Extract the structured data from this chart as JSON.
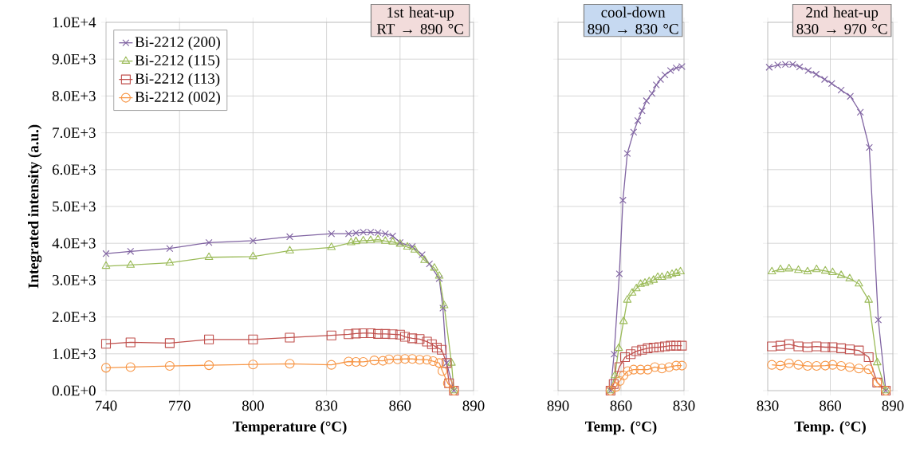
{
  "chart_data": [
    {
      "type": "line",
      "xlabel": "Temperature (°C)",
      "ylabel": "Integrated intensity (a.u.)",
      "annotations": [
        "1st heat-up RT → 890 °C"
      ],
      "xlim": [
        740,
        890
      ],
      "xticks": [
        740,
        770,
        800,
        830,
        860,
        890
      ],
      "ylim": [
        0,
        10000
      ],
      "yticks": [
        {
          "value": 0,
          "label": "0.0E+0"
        },
        {
          "value": 1000,
          "label": "1.0E+3"
        },
        {
          "value": 2000,
          "label": "2.0E+3"
        },
        {
          "value": 3000,
          "label": "3.0E+3"
        },
        {
          "value": 4000,
          "label": "4.0E+3"
        },
        {
          "value": 5000,
          "label": "5.0E+3"
        },
        {
          "value": 6000,
          "label": "6.0E+3"
        },
        {
          "value": 7000,
          "label": "7.0E+3"
        },
        {
          "value": 8000,
          "label": "8.0E+3"
        },
        {
          "value": 9000,
          "label": "9.0E+3"
        },
        {
          "value": 10000,
          "label": "1.0E+4"
        }
      ],
      "grid": true,
      "legend": "top left",
      "line_style": "solid",
      "series": [
        {
          "name": "Bi-2212 (200)",
          "color": "#8064a2",
          "marker": "cross",
          "x": [
            740,
            750,
            766,
            782,
            800,
            815,
            832,
            839,
            842,
            845,
            848,
            851,
            854,
            857,
            860,
            865,
            869,
            872,
            876,
            877.5,
            879,
            882
          ],
          "values": [
            3720,
            3780,
            3860,
            4020,
            4070,
            4180,
            4260,
            4260,
            4280,
            4300,
            4300,
            4290,
            4260,
            4200,
            4020,
            3910,
            3690,
            3440,
            3040,
            2240,
            750,
            0
          ]
        },
        {
          "name": "Bi-2212 (115)",
          "color": "#9bbb59",
          "marker": "triangle",
          "x": [
            740,
            750,
            766,
            782,
            800,
            815,
            832,
            840,
            842,
            845,
            848,
            851,
            854,
            857,
            860,
            863,
            866,
            870,
            874,
            876,
            878,
            881,
            882
          ],
          "values": [
            3380,
            3410,
            3470,
            3620,
            3640,
            3800,
            3890,
            4020,
            4050,
            4070,
            4080,
            4100,
            4060,
            4040,
            3980,
            3900,
            3820,
            3540,
            3330,
            3110,
            2310,
            750,
            0
          ]
        },
        {
          "name": "Bi-2212 (113)",
          "color": "#c0504d",
          "marker": "square",
          "x": [
            740,
            750,
            766,
            782,
            800,
            815,
            832,
            839,
            842,
            845,
            848,
            851,
            854,
            857,
            860,
            862,
            865,
            868,
            871,
            873,
            875,
            877,
            879,
            880,
            882
          ],
          "values": [
            1270,
            1310,
            1290,
            1390,
            1390,
            1440,
            1500,
            1530,
            1550,
            1560,
            1560,
            1540,
            1540,
            1530,
            1520,
            1460,
            1420,
            1400,
            1330,
            1260,
            1170,
            1110,
            750,
            200,
            0
          ]
        },
        {
          "name": "Bi-2212 (002)",
          "color": "#f79646",
          "marker": "circle",
          "x": [
            740,
            750,
            766,
            782,
            800,
            815,
            832,
            839,
            842,
            845,
            849.5,
            853,
            855.5,
            859,
            862,
            865,
            868,
            871,
            873.5,
            876,
            877.3,
            879.5,
            882
          ],
          "values": [
            620,
            640,
            670,
            690,
            710,
            730,
            700,
            790,
            780,
            780,
            820,
            810,
            850,
            850,
            860,
            860,
            840,
            840,
            800,
            750,
            530,
            200,
            0
          ]
        }
      ]
    },
    {
      "type": "line",
      "xlabel": "Temp. (°C)",
      "annotations": [
        "cool-down 890 → 830 °C"
      ],
      "xlim": [
        890,
        830
      ],
      "xticks": [
        890,
        860,
        830
      ],
      "ylim": [
        0,
        10000
      ],
      "yticks": [
        {
          "value": 0,
          "label": null
        },
        {
          "value": 1000,
          "label": null
        },
        {
          "value": 2000,
          "label": null
        },
        {
          "value": 3000,
          "label": null
        },
        {
          "value": 4000,
          "label": null
        },
        {
          "value": 5000,
          "label": null
        },
        {
          "value": 6000,
          "label": null
        },
        {
          "value": 7000,
          "label": null
        },
        {
          "value": 8000,
          "label": null
        },
        {
          "value": 9000,
          "label": null
        },
        {
          "value": 10000,
          "label": null
        }
      ],
      "tick_labels": "x",
      "grid": true,
      "line_style": "solid",
      "series": [
        {
          "color": "#8064a2",
          "marker": "cross",
          "x": [
            865,
            863.3,
            860.8,
            859.1,
            857,
            854,
            852,
            850,
            847.9,
            845.2,
            843.2,
            841.2,
            839.1,
            836.4,
            833.7,
            831
          ],
          "values": [
            0,
            990,
            3170,
            5170,
            6440,
            7020,
            7330,
            7600,
            7870,
            8070,
            8300,
            8450,
            8570,
            8690,
            8760,
            8800
          ]
        },
        {
          "color": "#9bbb59",
          "marker": "triangle",
          "x": [
            865,
            862.9,
            861.1,
            858.8,
            857,
            854.7,
            852.7,
            850.7,
            848.6,
            846.6,
            844.5,
            842.5,
            840.5,
            837.8,
            835.7,
            833.7,
            831.7
          ],
          "values": [
            0,
            410,
            1150,
            1880,
            2460,
            2650,
            2770,
            2890,
            2920,
            2960,
            3000,
            3080,
            3080,
            3120,
            3160,
            3190,
            3230
          ]
        },
        {
          "color": "#c0504d",
          "marker": "square",
          "x": [
            865,
            863.5,
            860.8,
            858.1,
            855.4,
            852.7,
            850,
            847.3,
            844.5,
            841.8,
            839.1,
            836.4,
            833.7,
            831
          ],
          "values": [
            0,
            180,
            640,
            910,
            990,
            1070,
            1110,
            1150,
            1170,
            1180,
            1200,
            1220,
            1220,
            1220
          ]
        },
        {
          "color": "#f79646",
          "marker": "circle",
          "x": [
            865,
            862.5,
            860.6,
            858.8,
            856.8,
            854,
            850.7,
            847.3,
            843.9,
            840.5,
            837.1,
            833.7,
            831
          ],
          "values": [
            0,
            100,
            260,
            410,
            530,
            570,
            570,
            570,
            640,
            600,
            640,
            680,
            680
          ]
        }
      ]
    },
    {
      "type": "line",
      "xlabel": "Temp. (°C)",
      "annotations": [
        "2nd heat-up 830 → 970 °C"
      ],
      "xlim": [
        830,
        890
      ],
      "xticks": [
        830,
        860,
        890
      ],
      "ylim": [
        0,
        10000
      ],
      "yticks": [
        {
          "value": 0,
          "label": null
        },
        {
          "value": 1000,
          "label": null
        },
        {
          "value": 2000,
          "label": null
        },
        {
          "value": 3000,
          "label": null
        },
        {
          "value": 4000,
          "label": null
        },
        {
          "value": 5000,
          "label": null
        },
        {
          "value": 6000,
          "label": null
        },
        {
          "value": 7000,
          "label": null
        },
        {
          "value": 8000,
          "label": null
        },
        {
          "value": 9000,
          "label": null
        },
        {
          "value": 10000,
          "label": null
        }
      ],
      "tick_labels": "x",
      "grid": true,
      "line_style": "solid",
      "series": [
        {
          "color": "#8064a2",
          "marker": "cross",
          "x": [
            830.7,
            834.8,
            838.5,
            842,
            845.3,
            849.4,
            853.2,
            857.3,
            860.7,
            865.2,
            869.6,
            874.4,
            878.7,
            883,
            886.6
          ],
          "values": [
            8780,
            8840,
            8860,
            8860,
            8790,
            8690,
            8590,
            8450,
            8340,
            8160,
            7990,
            7560,
            6600,
            1920,
            0
          ]
        },
        {
          "color": "#9bbb59",
          "marker": "triangle",
          "x": [
            832,
            836.1,
            840.2,
            844.7,
            849.1,
            853.4,
            857.6,
            861.1,
            865.2,
            869.3,
            873.7,
            878.4,
            882.5,
            886.6
          ],
          "values": [
            3230,
            3290,
            3310,
            3270,
            3230,
            3290,
            3250,
            3210,
            3130,
            3040,
            2900,
            2460,
            760,
            0
          ]
        },
        {
          "color": "#c0504d",
          "marker": "square",
          "x": [
            832,
            836.1,
            840.2,
            844.7,
            849.1,
            853.4,
            857.6,
            861.1,
            865.2,
            869.3,
            873.7,
            878.4,
            882.5,
            886.6
          ],
          "values": [
            1200,
            1220,
            1260,
            1200,
            1180,
            1200,
            1180,
            1180,
            1150,
            1120,
            1090,
            910,
            220,
            0
          ]
        },
        {
          "color": "#f79646",
          "marker": "circle",
          "x": [
            832,
            836.1,
            840.2,
            844.7,
            849.1,
            853.4,
            857.6,
            861.1,
            865.2,
            869.3,
            873.7,
            878.4,
            882.5,
            886.6
          ],
          "values": [
            700,
            680,
            740,
            700,
            670,
            670,
            680,
            700,
            670,
            640,
            600,
            580,
            220,
            0
          ]
        }
      ]
    }
  ]
}
